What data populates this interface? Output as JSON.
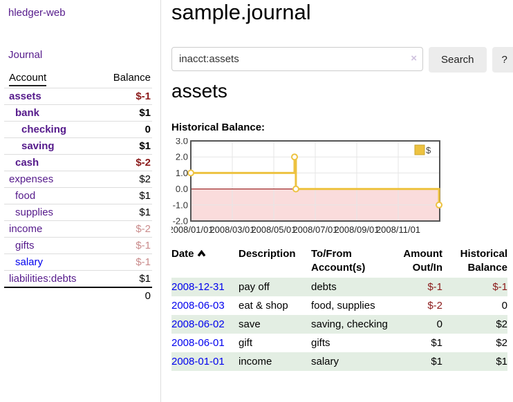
{
  "sidebar": {
    "brand": "hledger-web",
    "journal_link": "Journal",
    "accounts_table": {
      "headers": {
        "account": "Account",
        "balance": "Balance"
      },
      "rows": [
        {
          "name": "assets",
          "balance": "$-1",
          "depth": 0,
          "bold": true,
          "visited": true
        },
        {
          "name": "bank",
          "balance": "$1",
          "depth": 1,
          "bold": true,
          "visited": true
        },
        {
          "name": "checking",
          "balance": "0",
          "depth": 2,
          "bold": true,
          "visited": true
        },
        {
          "name": "saving",
          "balance": "$1",
          "depth": 2,
          "bold": true,
          "visited": true
        },
        {
          "name": "cash",
          "balance": "$-2",
          "depth": 1,
          "bold": true,
          "visited": true
        },
        {
          "name": "expenses",
          "balance": "$2",
          "depth": 0,
          "bold": false,
          "visited": true
        },
        {
          "name": "food",
          "balance": "$1",
          "depth": 1,
          "bold": false,
          "visited": true
        },
        {
          "name": "supplies",
          "balance": "$1",
          "depth": 1,
          "bold": false,
          "visited": true
        },
        {
          "name": "income",
          "balance": "$-2",
          "depth": 0,
          "bold": false,
          "visited": true
        },
        {
          "name": "gifts",
          "balance": "$-1",
          "depth": 1,
          "bold": false,
          "visited": true
        },
        {
          "name": "salary",
          "balance": "$-1",
          "depth": 1,
          "bold": false,
          "visited": false
        },
        {
          "name": "liabilities:debts",
          "balance": "$1",
          "depth": 0,
          "bold": false,
          "visited": true
        }
      ],
      "total": "0"
    }
  },
  "main": {
    "title": "sample.journal",
    "search": {
      "value": "inacct:assets",
      "clear_icon": "×",
      "button_label": "Search",
      "help_label": "?"
    },
    "account_heading": "assets",
    "chart_heading": "Historical Balance:",
    "register": {
      "headers": {
        "date": "Date",
        "description": "Description",
        "accounts": "To/From Account(s)",
        "amount": "Amount Out/In",
        "balance": "Historical Balance"
      },
      "rows": [
        {
          "date": "2008-12-31",
          "description": "pay off",
          "accounts": "debts",
          "amount": "$-1",
          "balance": "$-1"
        },
        {
          "date": "2008-06-03",
          "description": "eat & shop",
          "accounts": "food, supplies",
          "amount": "$-2",
          "balance": "0"
        },
        {
          "date": "2008-06-02",
          "description": "save",
          "accounts": "saving, checking",
          "amount": "0",
          "balance": "$2"
        },
        {
          "date": "2008-06-01",
          "description": "gift",
          "accounts": "gifts",
          "amount": "$1",
          "balance": "$2"
        },
        {
          "date": "2008-01-01",
          "description": "income",
          "accounts": "salary",
          "amount": "$1",
          "balance": "$1"
        }
      ]
    }
  },
  "chart_data": {
    "type": "line",
    "title": "Historical Balance",
    "step": true,
    "series": [
      {
        "name": "$",
        "color": "#edc240",
        "marker": "open-circle",
        "points": [
          {
            "date": "2008-01-01",
            "value": 1
          },
          {
            "date": "2008-06-01",
            "value": 2
          },
          {
            "date": "2008-06-03",
            "value": 0
          },
          {
            "date": "2008-12-31",
            "value": -1
          }
        ]
      }
    ],
    "ylim": [
      -2,
      3
    ],
    "ytick_labels": [
      "3.0",
      "2.0",
      "1.0",
      "0.0",
      "-1.0",
      "-2.0"
    ],
    "ytick_values": [
      3,
      2,
      1,
      0,
      -1,
      -2
    ],
    "xlim": [
      "2008-01-01",
      "2009-01-01"
    ],
    "xtick_labels": [
      "2008/01/01",
      "2008/03/01",
      "2008/05/01",
      "2008/07/01",
      "2008/09/01",
      "2008/11/01"
    ],
    "xtick_months": [
      0,
      2,
      4,
      6,
      8,
      10
    ],
    "grid": true,
    "legend": {
      "label": "$",
      "position": "top-right"
    },
    "negative_region_color": "#fadcdc",
    "zero_line_color": "#8b0000",
    "border_color": "#545454",
    "grid_color": "#e6e6e6"
  }
}
